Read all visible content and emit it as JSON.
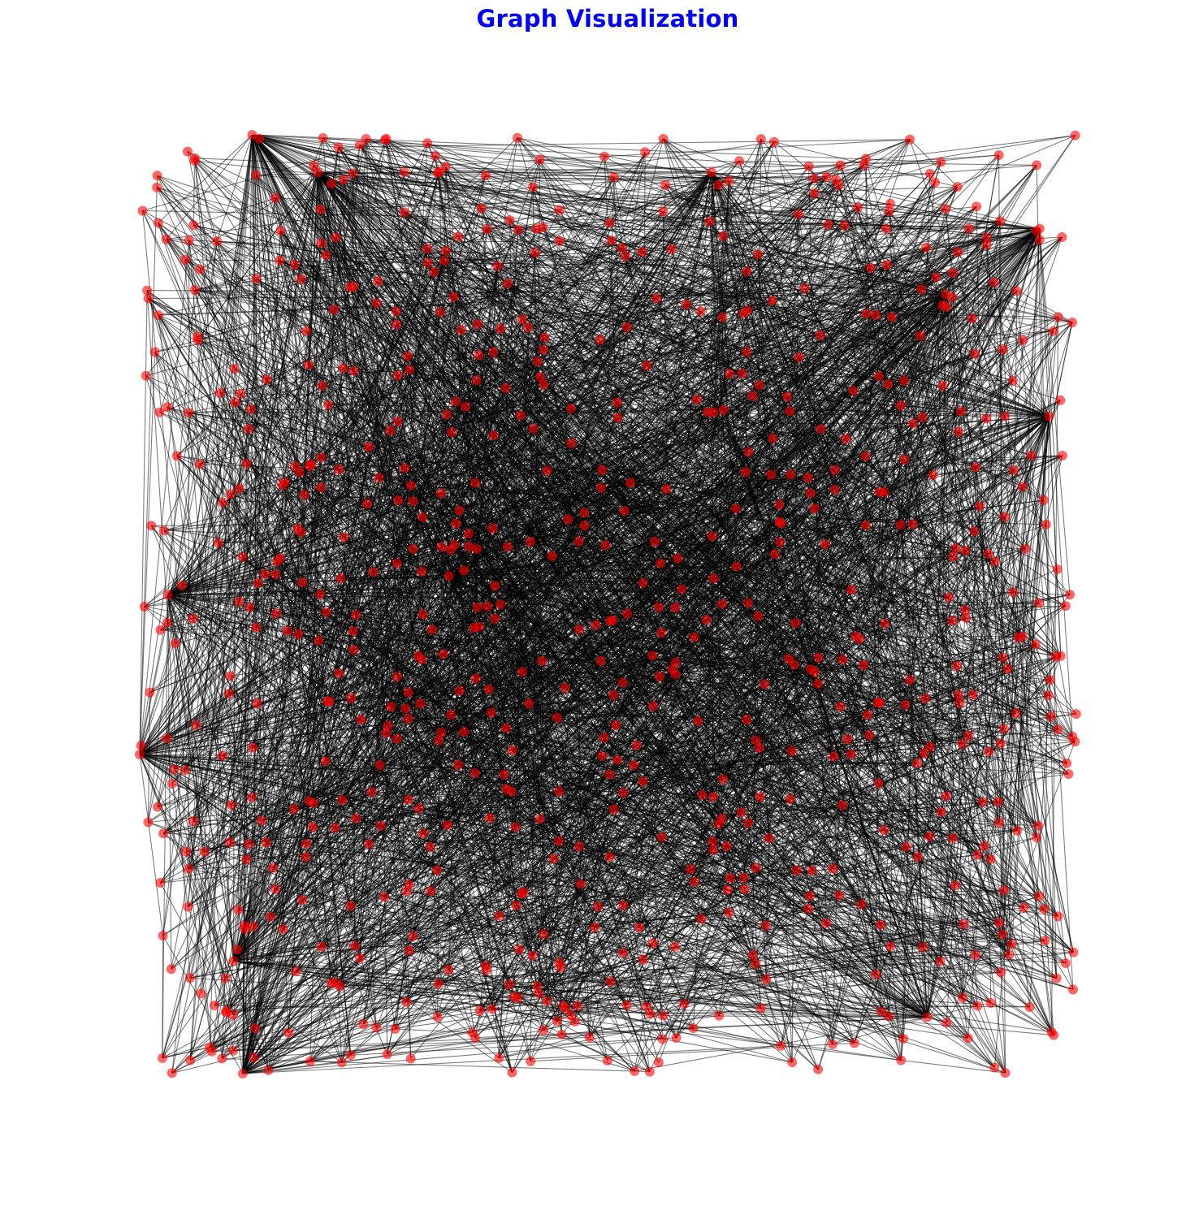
{
  "title": "Graph Visualization",
  "colors": {
    "title": "#0000ff",
    "node": "#ff0000",
    "edge": "#000000"
  },
  "diagram": {
    "type": "network-graph",
    "layout": "random",
    "node_count": 800,
    "edge_count": 4000,
    "hub_count": 12,
    "node_shape": "circle",
    "axes": "off"
  }
}
